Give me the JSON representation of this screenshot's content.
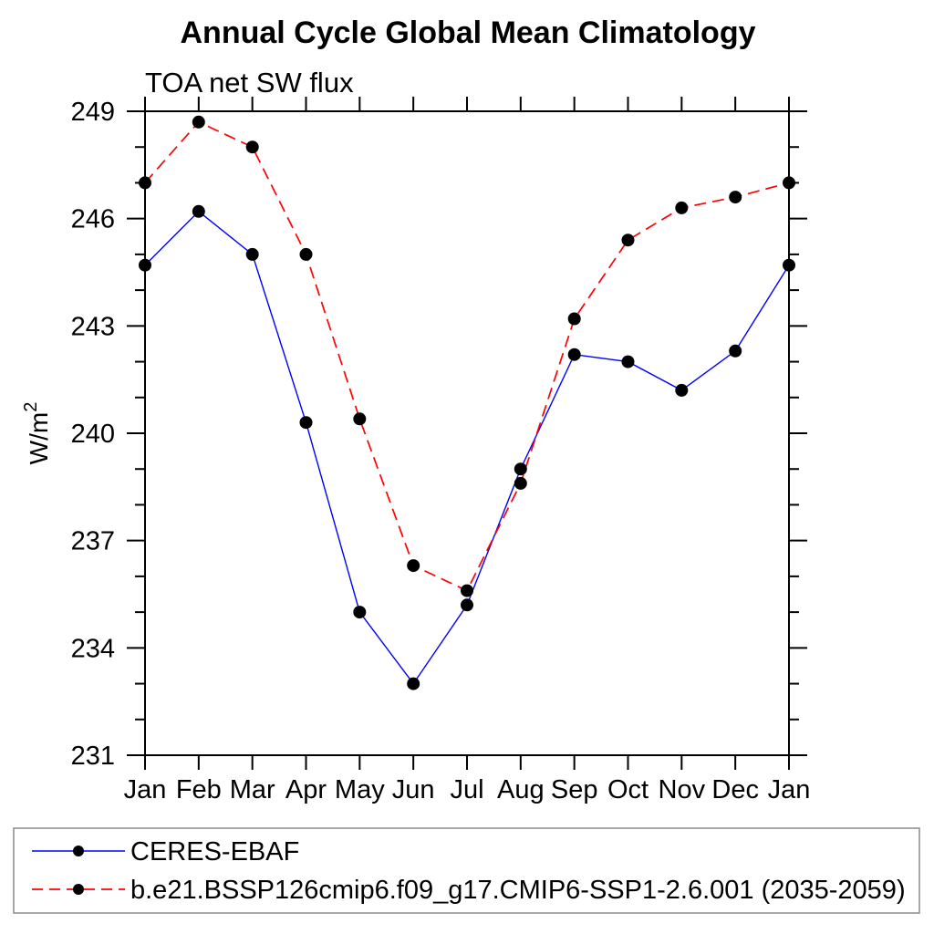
{
  "title": "Annual Cycle Global Mean Climatology",
  "subtitle": "TOA net SW flux",
  "y_axis": {
    "label_base": "W/m",
    "label_sup": "2",
    "min": 231,
    "max": 249,
    "major_step": 3,
    "minor_step": 1,
    "tick_labels": [
      "231",
      "234",
      "237",
      "240",
      "243",
      "246",
      "249"
    ]
  },
  "x_axis": {
    "tick_labels": [
      "Jan",
      "Feb",
      "Mar",
      "Apr",
      "May",
      "Jun",
      "Jul",
      "Aug",
      "Sep",
      "Oct",
      "Nov",
      "Dec",
      "Jan"
    ]
  },
  "legend": {
    "entries": [
      {
        "label": "CERES-EBAF",
        "color": "#0000ff",
        "style": "solid"
      },
      {
        "label": "b.e21.BSSP126cmip6.f09_g17.CMIP6-SSP1-2.6.001 (2035-2059)",
        "color": "#ff0000",
        "style": "dashed"
      }
    ]
  },
  "colors": {
    "observation_line": "#0000ff",
    "model_line": "#ff0000",
    "marker": "#000000",
    "axis": "#000000"
  },
  "chart_data": {
    "type": "line",
    "title": "Annual Cycle Global Mean Climatology",
    "subtitle": "TOA net SW flux",
    "ylabel": "W/m²",
    "xlabel": "",
    "ylim": [
      231,
      249
    ],
    "y_major_tick_step": 3,
    "y_minor_tick_step": 1,
    "grid": false,
    "legend_position": "bottom",
    "categories": [
      "Jan",
      "Feb",
      "Mar",
      "Apr",
      "May",
      "Jun",
      "Jul",
      "Aug",
      "Sep",
      "Oct",
      "Nov",
      "Dec",
      "Jan"
    ],
    "series": [
      {
        "name": "CERES-EBAF",
        "color": "#0000ff",
        "style": "solid",
        "marker": "black-dot",
        "values": [
          244.7,
          246.2,
          245.0,
          240.3,
          235.0,
          233.0,
          235.2,
          239.0,
          242.2,
          242.0,
          241.2,
          242.3,
          244.7
        ]
      },
      {
        "name": "b.e21.BSSP126cmip6.f09_g17.CMIP6-SSP1-2.6.001 (2035-2059)",
        "color": "#ff0000",
        "style": "dashed",
        "marker": "black-dot",
        "values": [
          247.0,
          248.7,
          248.0,
          245.0,
          240.4,
          236.3,
          235.6,
          238.6,
          243.2,
          245.4,
          246.3,
          246.6,
          247.0
        ]
      }
    ]
  }
}
